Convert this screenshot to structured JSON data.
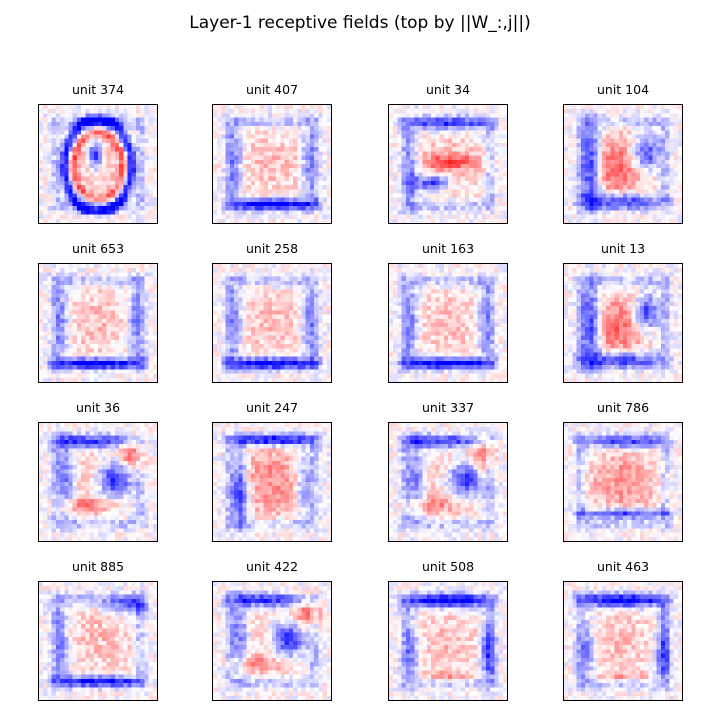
{
  "title": "Layer-1 receptive fields (top by ||W_:,j||)",
  "chart_data": {
    "type": "heatmap",
    "grid": {
      "rows": 4,
      "cols": 4
    },
    "axes_visible": false,
    "colormap": "bwr",
    "colors": {
      "negative": "#0000ff",
      "zero": "#ffffff",
      "positive": "#ff0000"
    },
    "panels": [
      {
        "title": "unit 374",
        "pattern": "zero"
      },
      {
        "title": "unit 407",
        "pattern": "frame"
      },
      {
        "title": "unit 34",
        "pattern": "seven"
      },
      {
        "title": "unit 104",
        "pattern": "six"
      },
      {
        "title": "unit 653",
        "pattern": "frame"
      },
      {
        "title": "unit 258",
        "pattern": "frame"
      },
      {
        "title": "unit 163",
        "pattern": "frame"
      },
      {
        "title": "unit 13",
        "pattern": "six"
      },
      {
        "title": "unit 36",
        "pattern": "five"
      },
      {
        "title": "unit 247",
        "pattern": "frame-dark"
      },
      {
        "title": "unit 337",
        "pattern": "five"
      },
      {
        "title": "unit 786",
        "pattern": "frame-soft"
      },
      {
        "title": "unit 885",
        "pattern": "frame-two"
      },
      {
        "title": "unit 422",
        "pattern": "five"
      },
      {
        "title": "unit 508",
        "pattern": "frame-top"
      },
      {
        "title": "unit 463",
        "pattern": "frame-top"
      }
    ]
  }
}
